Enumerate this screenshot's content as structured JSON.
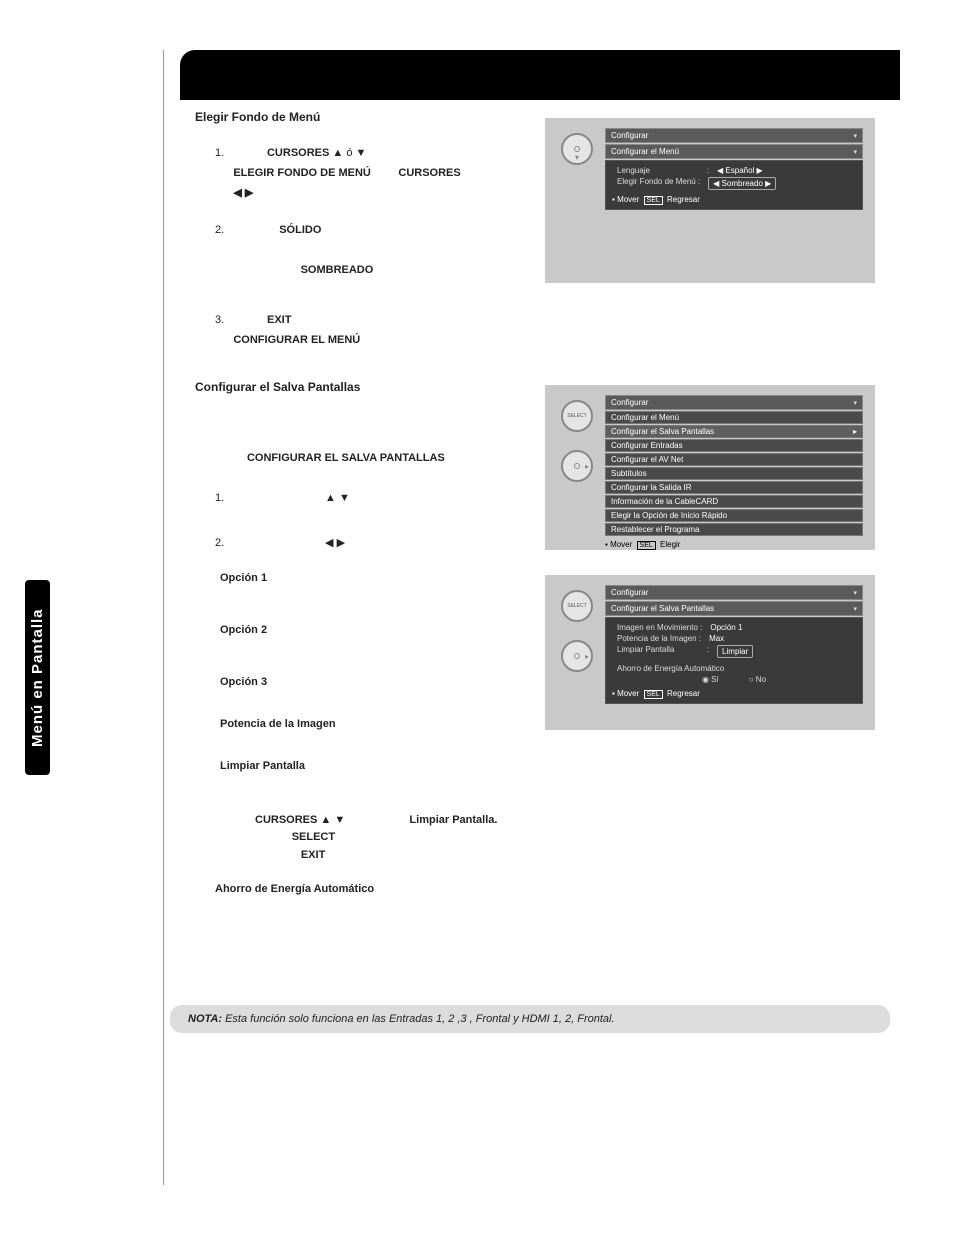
{
  "sidebar_label": "Menú en Pantalla",
  "section1": {
    "title": "Elegir Fondo de Menú",
    "step1_a": "1.",
    "step1_b": "CURSORES ▲",
    "step1_c": "ó ▼",
    "step1_d": "ELEGIR FONDO DE MENÚ",
    "step1_e": "CURSORES",
    "step1_f": "◀  ▶",
    "step2_a": "2.",
    "step2_b": "SÓLIDO",
    "step2_c": "SOMBREADO",
    "step3_a": "3.",
    "step3_b": "EXIT",
    "step3_c": "CONFIGURAR EL MENÚ"
  },
  "section2": {
    "title": "Configurar el Salva Pantallas",
    "line1": "CONFIGURAR EL SALVA PANTALLAS",
    "step1": "1.",
    "step1_sym": "▲    ▼",
    "step2": "2.",
    "step2_sym": "◀    ▶",
    "opt1": "Opción 1",
    "opt2": "Opción 2",
    "opt3": "Opción 3",
    "pot": "Potencia de la Imagen",
    "limp": "Limpiar Pantalla",
    "cur_a": "CURSORES ▲    ▼",
    "cur_b": "Limpiar Pantalla.",
    "sel": "SELECT",
    "exit": "EXIT",
    "ahorro": "Ahorro de Energía Automático"
  },
  "note": {
    "label": "NOTA:",
    "text": " Esta función solo funciona en las Entradas 1, 2 ,3 , Frontal y HDMI 1, 2, Frontal."
  },
  "osd1": {
    "hdr1": "Configurar",
    "hdr2": "Configurar el Menú",
    "r1": "Lenguaje",
    "r1v": "◀ Español ▶",
    "r2": "Elegir Fondo de Menú :",
    "r2v": "◀ Sombreado ▶",
    "ftr": "Mover",
    "ftr2": "Regresar",
    "sel": "SEL"
  },
  "osd2": {
    "hdr1": "Configurar",
    "items": [
      "Configurar el Menú",
      "Configurar el Salva Pantallas",
      "Configurar Entradas",
      "Configurar el AV Net",
      "Subtítulos",
      "Configurar la Salida IR",
      "Información de la CableCARD",
      "Elegir la Opción de Inicio Rápido",
      "Restablecer el Programa"
    ],
    "ftr": "Mover",
    "ftr2": "Elegir",
    "sel": "SEL"
  },
  "osd3": {
    "hdr1": "Configurar",
    "hdr2": "Configurar el Salva Pantallas",
    "r1": "Imagen en Movimiento  :",
    "r1v": "Opción 1",
    "r2": "Potencia de la Imagen   :",
    "r2v": "Max",
    "r3": "Limpiar Pantalla",
    "r3v": "Limpiar",
    "r4": "Ahorro de Energía Automático",
    "r5a": "Sí",
    "r5b": "No",
    "ftr": "Mover",
    "ftr2": "Regresar",
    "sel": "SEL"
  },
  "colors": {
    "black": "#000",
    "gray": "#c9c9c9",
    "dark": "#3a3a3a"
  }
}
